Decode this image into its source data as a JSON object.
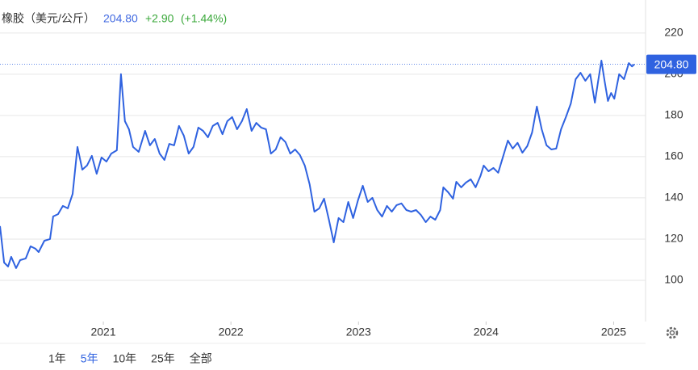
{
  "chart_data": {
    "type": "line",
    "title": "橡胶（美元/公斤）",
    "price": "204.80",
    "change": "+2.90",
    "change_pct": "(+1.44%)",
    "series": [
      {
        "name": "橡胶",
        "color": "#2f62e0",
        "x": [
          2020.19,
          2020.222,
          2020.253,
          2020.278,
          2020.316,
          2020.348,
          2020.392,
          2020.43,
          2020.468,
          2020.493,
          2020.538,
          2020.582,
          2020.607,
          2020.645,
          2020.683,
          2020.721,
          2020.759,
          2020.797,
          2020.835,
          2020.872,
          2020.91,
          2020.948,
          2020.986,
          2021.024,
          2021.062,
          2021.106,
          2021.138,
          2021.169,
          2021.201,
          2021.233,
          2021.277,
          2021.327,
          2021.365,
          2021.403,
          2021.441,
          2021.479,
          2021.517,
          2021.555,
          2021.593,
          2021.631,
          2021.669,
          2021.707,
          2021.745,
          2021.782,
          2021.82,
          2021.858,
          2021.896,
          2021.934,
          2021.972,
          2022.01,
          2022.048,
          2022.086,
          2022.124,
          2022.162,
          2022.199,
          2022.237,
          2022.275,
          2022.313,
          2022.351,
          2022.389,
          2022.427,
          2022.465,
          2022.503,
          2022.541,
          2022.579,
          2022.617,
          2022.654,
          2022.692,
          2022.73,
          2022.768,
          2022.806,
          2022.844,
          2022.882,
          2022.92,
          2022.958,
          2022.996,
          2023.034,
          2023.072,
          2023.109,
          2023.147,
          2023.185,
          2023.223,
          2023.261,
          2023.299,
          2023.337,
          2023.375,
          2023.413,
          2023.451,
          2023.489,
          2023.527,
          2023.564,
          2023.602,
          2023.64,
          2023.665,
          2023.703,
          2023.741,
          2023.767,
          2023.805,
          2023.842,
          2023.88,
          2023.918,
          2023.956,
          2023.981,
          2024.019,
          2024.057,
          2024.095,
          2024.133,
          2024.171,
          2024.209,
          2024.247,
          2024.285,
          2024.323,
          2024.361,
          2024.398,
          2024.436,
          2024.474,
          2024.512,
          2024.55,
          2024.588,
          2024.626,
          2024.664,
          2024.702,
          2024.74,
          2024.778,
          2024.816,
          2024.853,
          2024.879,
          2024.904,
          2024.929,
          2024.955,
          2024.98,
          2025.005,
          2025.043,
          2025.081,
          2025.119,
          2025.144,
          2025.163
        ],
        "values": [
          126.3,
          108.6,
          106.7,
          111.4,
          105.9,
          109.8,
          110.6,
          116.5,
          115.3,
          113.7,
          119.2,
          120,
          131,
          132.1,
          136.1,
          134.9,
          141.9,
          164.7,
          153.7,
          155.7,
          160.4,
          151.7,
          159.6,
          157.6,
          161.5,
          163.1,
          200,
          177.2,
          173.3,
          164.7,
          162.3,
          172.5,
          165.5,
          168.6,
          161.5,
          158.4,
          166.2,
          165.5,
          174.9,
          170.2,
          161.5,
          164.7,
          174.1,
          172.5,
          169.4,
          174.9,
          176.4,
          170.9,
          177.2,
          179.2,
          173.3,
          177.2,
          183.1,
          172.5,
          176.4,
          174.1,
          173.3,
          161.5,
          163.5,
          169.4,
          167.1,
          161.5,
          163.5,
          160.8,
          155.7,
          146.6,
          133.3,
          134.9,
          139.6,
          129.4,
          118.4,
          130.2,
          128.2,
          138,
          130.2,
          138.8,
          145.9,
          138,
          140,
          134.1,
          130.9,
          136.1,
          133.3,
          136.5,
          137.3,
          134.1,
          133.3,
          134.1,
          131.7,
          128.2,
          130.9,
          129.4,
          134.1,
          145.1,
          142.7,
          139.6,
          147.8,
          145.1,
          147.4,
          149,
          145.1,
          150.6,
          155.7,
          152.9,
          154.5,
          152.2,
          160,
          167.8,
          163.9,
          166.7,
          161.9,
          165.1,
          171.7,
          184.3,
          173.3,
          165.5,
          163.5,
          163.9,
          173.3,
          179.2,
          185.8,
          197.6,
          200.7,
          196.8,
          200,
          186.2,
          196.8,
          206.6,
          196.8,
          187,
          190.9,
          188.1,
          200,
          197.6,
          205.4,
          203.8,
          204.8
        ]
      }
    ],
    "xlim": [
      2020.19,
      2025.25
    ],
    "xticks": [
      2021,
      2022,
      2023,
      2024,
      2025
    ],
    "ylim": [
      80,
      236
    ],
    "yticks": [
      100,
      120,
      140,
      160,
      180,
      200,
      220
    ],
    "grid": true,
    "range_buttons": [
      "1年",
      "5年",
      "10年",
      "25年",
      "全部"
    ],
    "selected_range": "5年"
  }
}
